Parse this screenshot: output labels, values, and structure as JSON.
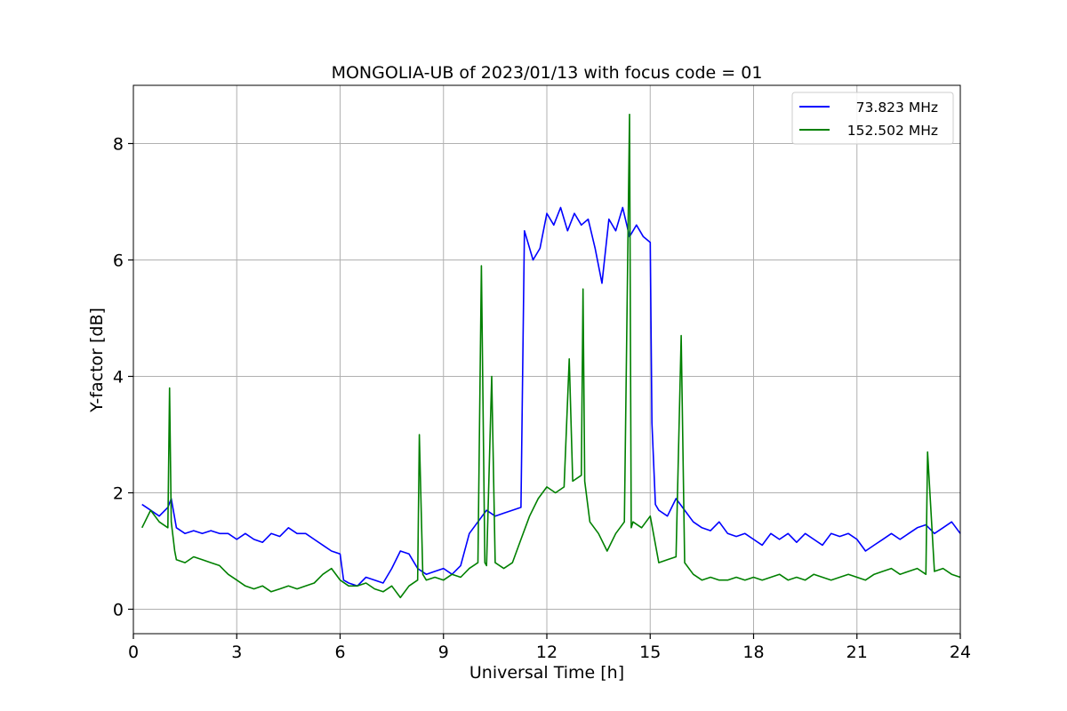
{
  "chart_data": {
    "type": "line",
    "title": "MONGOLIA-UB of 2023/01/13 with focus code = 01",
    "xlabel": "Universal Time [h]",
    "ylabel": "Y-factor [dB]",
    "xlim": [
      0,
      24
    ],
    "ylim": [
      -0.42,
      9.0
    ],
    "xticks": [
      0,
      3,
      6,
      9,
      12,
      15,
      18,
      21,
      24
    ],
    "yticks": [
      0,
      2,
      4,
      6,
      8
    ],
    "xtick_labels": [
      "0",
      "3",
      "6",
      "9",
      "12",
      "15",
      "18",
      "21",
      "24"
    ],
    "ytick_labels": [
      "0",
      "2",
      "4",
      "6",
      "8"
    ],
    "grid": true,
    "legend_position": "top-right",
    "series": [
      {
        "name": "73.823 MHz",
        "color": "#0000ff",
        "x": [
          0.25,
          0.5,
          0.75,
          1.0,
          1.1,
          1.25,
          1.5,
          1.75,
          2.0,
          2.25,
          2.5,
          2.75,
          3.0,
          3.25,
          3.5,
          3.75,
          4.0,
          4.25,
          4.5,
          4.75,
          5.0,
          5.25,
          5.5,
          5.75,
          6.0,
          6.1,
          6.25,
          6.5,
          6.75,
          7.0,
          7.25,
          7.5,
          7.75,
          8.0,
          8.25,
          8.5,
          8.75,
          9.0,
          9.25,
          9.5,
          9.75,
          10.0,
          10.25,
          10.5,
          10.75,
          11.0,
          11.25,
          11.35,
          11.45,
          11.6,
          11.8,
          12.0,
          12.2,
          12.4,
          12.6,
          12.8,
          13.0,
          13.2,
          13.4,
          13.6,
          13.8,
          14.0,
          14.2,
          14.4,
          14.6,
          14.8,
          15.0,
          15.05,
          15.15,
          15.25,
          15.5,
          15.75,
          16.0,
          16.25,
          16.5,
          16.75,
          17.0,
          17.25,
          17.5,
          17.75,
          18.0,
          18.25,
          18.5,
          18.75,
          19.0,
          19.25,
          19.5,
          19.75,
          20.0,
          20.25,
          20.5,
          20.75,
          21.0,
          21.25,
          21.5,
          21.75,
          22.0,
          22.25,
          22.5,
          22.75,
          23.0,
          23.25,
          23.5,
          23.75,
          24.0
        ],
        "y": [
          1.8,
          1.7,
          1.6,
          1.75,
          1.9,
          1.4,
          1.3,
          1.35,
          1.3,
          1.35,
          1.3,
          1.3,
          1.2,
          1.3,
          1.2,
          1.15,
          1.3,
          1.25,
          1.4,
          1.3,
          1.3,
          1.2,
          1.1,
          1.0,
          0.95,
          0.5,
          0.45,
          0.4,
          0.55,
          0.5,
          0.45,
          0.7,
          1.0,
          0.95,
          0.7,
          0.6,
          0.65,
          0.7,
          0.6,
          0.75,
          1.3,
          1.5,
          1.7,
          1.6,
          1.65,
          1.7,
          1.75,
          6.5,
          6.3,
          6.0,
          6.2,
          6.8,
          6.6,
          6.9,
          6.5,
          6.8,
          6.6,
          6.7,
          6.2,
          5.6,
          6.7,
          6.5,
          6.9,
          6.4,
          6.6,
          6.4,
          6.3,
          3.2,
          1.8,
          1.7,
          1.6,
          1.9,
          1.7,
          1.5,
          1.4,
          1.35,
          1.5,
          1.3,
          1.25,
          1.3,
          1.2,
          1.1,
          1.3,
          1.2,
          1.3,
          1.15,
          1.3,
          1.2,
          1.1,
          1.3,
          1.25,
          1.3,
          1.2,
          1.0,
          1.1,
          1.2,
          1.3,
          1.2,
          1.3,
          1.4,
          1.45,
          1.3,
          1.4,
          1.5,
          1.3
        ]
      },
      {
        "name": "152.502 MHz",
        "color": "#008000",
        "x": [
          0.25,
          0.5,
          0.75,
          1.0,
          1.05,
          1.1,
          1.2,
          1.25,
          1.5,
          1.75,
          2.0,
          2.25,
          2.5,
          2.75,
          3.0,
          3.25,
          3.5,
          3.75,
          4.0,
          4.25,
          4.5,
          4.75,
          5.0,
          5.25,
          5.5,
          5.75,
          6.0,
          6.25,
          6.5,
          6.75,
          7.0,
          7.25,
          7.5,
          7.75,
          8.0,
          8.25,
          8.3,
          8.4,
          8.5,
          8.75,
          9.0,
          9.25,
          9.5,
          9.75,
          10.0,
          10.1,
          10.2,
          10.25,
          10.4,
          10.5,
          10.75,
          11.0,
          11.25,
          11.5,
          11.75,
          12.0,
          12.25,
          12.5,
          12.65,
          12.75,
          13.0,
          13.05,
          13.1,
          13.25,
          13.5,
          13.75,
          14.0,
          14.25,
          14.4,
          14.45,
          14.5,
          14.75,
          15.0,
          15.25,
          15.5,
          15.75,
          15.9,
          16.0,
          16.25,
          16.5,
          16.75,
          17.0,
          17.25,
          17.5,
          17.75,
          18.0,
          18.25,
          18.5,
          18.75,
          19.0,
          19.25,
          19.5,
          19.75,
          20.0,
          20.25,
          20.5,
          20.75,
          21.0,
          21.25,
          21.5,
          21.75,
          22.0,
          22.25,
          22.5,
          22.75,
          23.0,
          23.05,
          23.25,
          23.5,
          23.75,
          24.0
        ],
        "y": [
          1.4,
          1.7,
          1.5,
          1.4,
          3.8,
          1.5,
          1.0,
          0.85,
          0.8,
          0.9,
          0.85,
          0.8,
          0.75,
          0.6,
          0.5,
          0.4,
          0.35,
          0.4,
          0.3,
          0.35,
          0.4,
          0.35,
          0.4,
          0.45,
          0.6,
          0.7,
          0.5,
          0.4,
          0.4,
          0.45,
          0.35,
          0.3,
          0.4,
          0.2,
          0.4,
          0.5,
          3.0,
          0.6,
          0.5,
          0.55,
          0.5,
          0.6,
          0.55,
          0.7,
          0.8,
          5.9,
          0.8,
          0.75,
          4.0,
          0.8,
          0.7,
          0.8,
          1.2,
          1.6,
          1.9,
          2.1,
          2.0,
          2.1,
          4.3,
          2.2,
          2.3,
          5.5,
          2.2,
          1.5,
          1.3,
          1.0,
          1.3,
          1.5,
          8.5,
          1.4,
          1.5,
          1.4,
          1.6,
          0.8,
          0.85,
          0.9,
          4.7,
          0.8,
          0.6,
          0.5,
          0.55,
          0.5,
          0.5,
          0.55,
          0.5,
          0.55,
          0.5,
          0.55,
          0.6,
          0.5,
          0.55,
          0.5,
          0.6,
          0.55,
          0.5,
          0.55,
          0.6,
          0.55,
          0.5,
          0.6,
          0.65,
          0.7,
          0.6,
          0.65,
          0.7,
          0.6,
          2.7,
          0.65,
          0.7,
          0.6,
          0.55
        ]
      }
    ]
  }
}
